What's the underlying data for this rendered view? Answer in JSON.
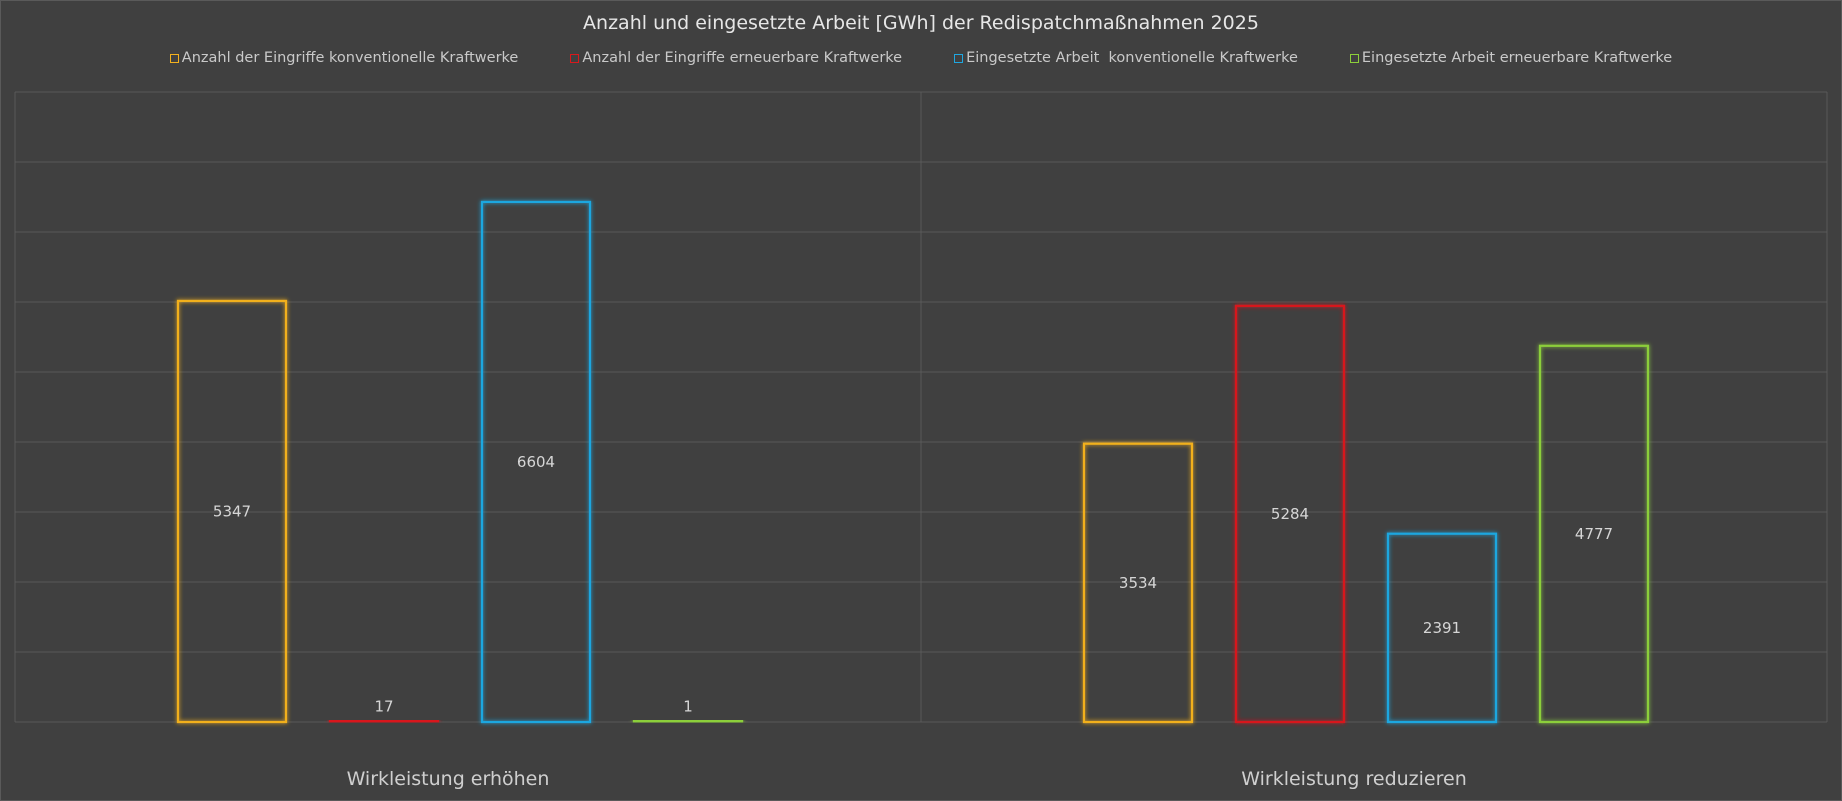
{
  "chart_data": {
    "type": "bar",
    "title": "Anzahl und eingesetzte Arbeit [GWh] der Redispatchmaßnahmen  2025",
    "categories": [
      "Wirkleistung erhöhen",
      "Wirkleistung reduzieren"
    ],
    "series": [
      {
        "name": "Anzahl der Eingriffe konventionelle Kraftwerke",
        "color": "#f2b01e",
        "values": [
          5347,
          3534
        ]
      },
      {
        "name": "Anzahl der Eingriffe erneuerbare Kraftwerke",
        "color": "#d8191c",
        "values": [
          17,
          5284
        ]
      },
      {
        "name": "Eingesetzte Arbeit  konventionelle Kraftwerke",
        "color": "#1fa7e0",
        "values": [
          6604,
          2391
        ]
      },
      {
        "name": "Eingesetzte Arbeit erneuerbare Kraftwerke",
        "color": "#8ccf3a",
        "values": [
          1,
          4777
        ]
      }
    ],
    "xlabel": "",
    "ylabel": "",
    "ylim": [
      0,
      8000
    ],
    "grid": true,
    "legend": "top-center",
    "background": "#404040"
  }
}
